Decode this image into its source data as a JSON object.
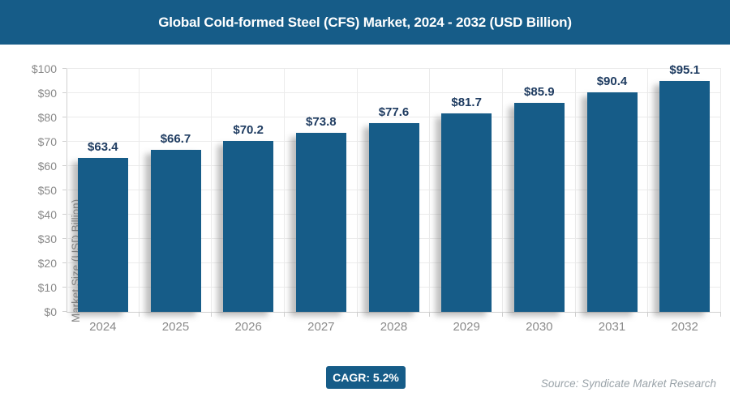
{
  "header": {
    "title": "Global Cold-formed Steel (CFS) Market, 2024 - 2032 (USD Billion)"
  },
  "colors": {
    "primary_blue": "#165c88",
    "data_label_navy": "#1f3c61",
    "axis_text_gray": "#8a8a8a",
    "gridline_gray": "#ebebeb",
    "source_text_gray": "#9aa3a9"
  },
  "chart_data": {
    "type": "bar",
    "title": "Global Cold-formed Steel (CFS) Market, 2024 - 2032 (USD Billion)",
    "categories": [
      "2024",
      "2025",
      "2026",
      "2027",
      "2028",
      "2029",
      "2030",
      "2031",
      "2032"
    ],
    "values": [
      63.4,
      66.7,
      70.2,
      73.8,
      77.6,
      81.7,
      85.9,
      90.4,
      95.1
    ],
    "data_labels": [
      "$63.4",
      "$66.7",
      "$70.2",
      "$73.8",
      "$77.6",
      "$81.7",
      "$85.9",
      "$90.4",
      "$95.1"
    ],
    "xlabel": "",
    "ylabel": "Market Size (USD Billion)",
    "ylim": [
      0,
      100
    ],
    "ytick_step": 10,
    "ytick_labels": [
      "$0",
      "$10",
      "$20",
      "$30",
      "$40",
      "$50",
      "$60",
      "$70",
      "$80",
      "$90",
      "$100"
    ],
    "grid": true,
    "legend_position": "none",
    "bar_color": "#165c88"
  },
  "footer": {
    "cagr_badge": "CAGR: 5.2%",
    "source": "Source: Syndicate Market Research"
  }
}
